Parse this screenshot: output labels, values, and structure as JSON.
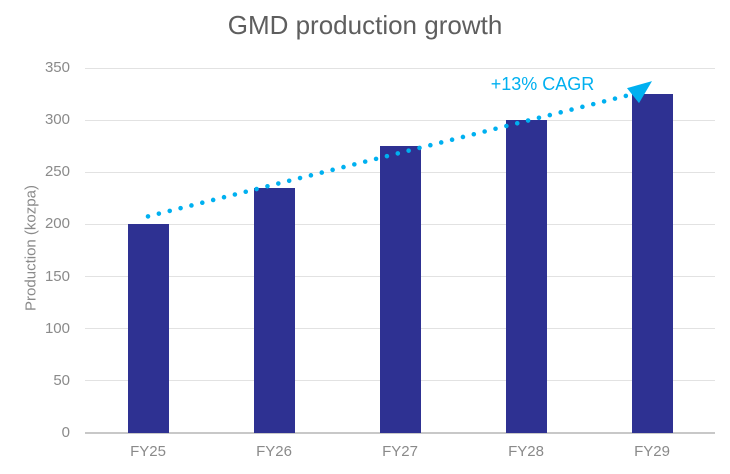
{
  "chart_data": {
    "type": "bar",
    "title": "GMD production growth",
    "xlabel": "",
    "ylabel": "Production (kozpa)",
    "categories": [
      "FY25",
      "FY26",
      "FY27",
      "FY28",
      "FY29"
    ],
    "values": [
      200,
      235,
      275,
      300,
      325
    ],
    "ylim": [
      0,
      350
    ],
    "yticks": [
      0,
      50,
      100,
      150,
      200,
      250,
      300,
      350
    ],
    "grid": "horizontal",
    "legend": "none",
    "annotation": {
      "label": "+13% CAGR",
      "style": "dotted-arrow-trend-line"
    },
    "colors": {
      "bar": "#2E3192",
      "trend": "#00B0F0",
      "gridline": "#E2E2E2",
      "baseline": "#C8C8C8",
      "title_text": "#5E5E5E",
      "axis_text": "#8A8A8A",
      "background": "#FFFFFF"
    }
  }
}
